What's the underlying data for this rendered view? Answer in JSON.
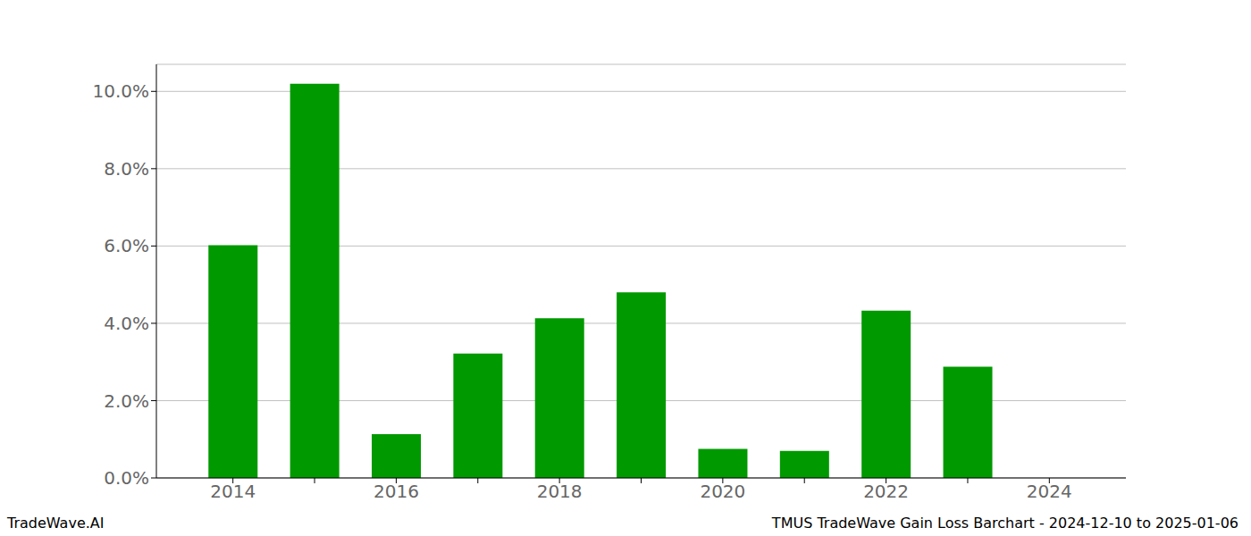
{
  "chart_data": {
    "type": "bar",
    "categories": [
      "2014",
      null,
      "2016",
      null,
      "2018",
      null,
      "2020",
      null,
      "2022",
      null,
      "2024"
    ],
    "values": [
      6.02,
      10.2,
      1.13,
      3.22,
      4.13,
      4.8,
      0.75,
      0.7,
      4.33,
      2.88,
      0
    ],
    "color": "#009900",
    "ylim": [
      0,
      10.7
    ],
    "yticks": [
      {
        "value": 0,
        "label": "0.0%"
      },
      {
        "value": 2,
        "label": "2.0%"
      },
      {
        "value": 4,
        "label": "4.0%"
      },
      {
        "value": 6,
        "label": "6.0%"
      },
      {
        "value": 8,
        "label": "8.0%"
      },
      {
        "value": 10,
        "label": "10.0%"
      }
    ],
    "grid": true,
    "annotations": [
      "TradeWave.AI",
      "TMUS TradeWave Gain Loss Barchart - 2024-12-10 to 2025-01-06"
    ]
  }
}
